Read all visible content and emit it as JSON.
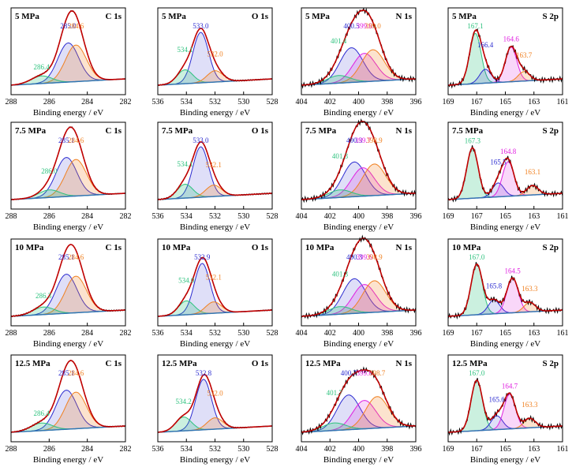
{
  "colors": {
    "frame": "#000000",
    "envelope": "#c00000",
    "raw": "#000000",
    "background": "#2e75b6",
    "blue": "#2b2bd0",
    "orange": "#f08020",
    "green": "#2ec27e",
    "magenta": "#e020e0"
  },
  "xlabel": "Binding energy / eV",
  "rows": [
    "5 MPa",
    "7.5 MPa",
    "10 MPa",
    "12.5 MPa"
  ],
  "chart_data": [
    {
      "type": "line",
      "pressure": "5 MPa",
      "element": "C 1s",
      "xlim": [
        288,
        282
      ],
      "xticks": [
        288,
        286,
        284,
        282
      ],
      "xlabel": "Binding energy / eV",
      "series": [
        {
          "peak": 285.0,
          "color": "blue",
          "label": "285.0"
        },
        {
          "peak": 284.6,
          "color": "orange",
          "label": "284.6"
        },
        {
          "peak": 286.4,
          "color": "green",
          "label": "286.4"
        }
      ]
    },
    {
      "type": "line",
      "pressure": "5 MPa",
      "element": "O 1s",
      "xlim": [
        536,
        528
      ],
      "xticks": [
        536,
        534,
        532,
        530,
        528
      ],
      "xlabel": "Binding energy / eV",
      "series": [
        {
          "peak": 533.0,
          "color": "blue",
          "label": "533.0"
        },
        {
          "peak": 534.1,
          "color": "green",
          "label": "534.1"
        },
        {
          "peak": 532.0,
          "color": "orange",
          "label": "532.0"
        }
      ]
    },
    {
      "type": "line",
      "pressure": "5 MPa",
      "element": "N 1s",
      "xlim": [
        404,
        396
      ],
      "xticks": [
        404,
        402,
        400,
        398,
        396
      ],
      "xlabel": "Binding energy / eV",
      "series": [
        {
          "peak": 400.5,
          "color": "blue",
          "label": "400.5"
        },
        {
          "peak": 399.6,
          "color": "magenta",
          "label": "399.6"
        },
        {
          "peak": 399.0,
          "color": "orange",
          "label": "399.0"
        },
        {
          "peak": 401.4,
          "color": "green",
          "label": "401.4"
        }
      ]
    },
    {
      "type": "line",
      "pressure": "5 MPa",
      "element": "S 2p",
      "xlim": [
        169,
        161
      ],
      "xticks": [
        169,
        167,
        165,
        163,
        161
      ],
      "xlabel": "Binding energy / eV",
      "series": [
        {
          "peak": 167.1,
          "color": "green",
          "label": "167.1"
        },
        {
          "peak": 166.4,
          "color": "blue",
          "label": "166.4"
        },
        {
          "peak": 164.6,
          "color": "magenta",
          "label": "164.6"
        },
        {
          "peak": 163.7,
          "color": "orange",
          "label": "163.7"
        }
      ]
    },
    {
      "type": "line",
      "pressure": "7.5 MPa",
      "element": "C 1s",
      "xlim": [
        288,
        282
      ],
      "xticks": [
        288,
        286,
        284,
        282
      ],
      "xlabel": "Binding energy / eV",
      "series": [
        {
          "peak": 285.1,
          "color": "blue",
          "label": "285.1"
        },
        {
          "peak": 284.6,
          "color": "orange",
          "label": "284.6"
        },
        {
          "peak": 286.0,
          "color": "green",
          "label": "286.0"
        }
      ]
    },
    {
      "type": "line",
      "pressure": "7.5 MPa",
      "element": "O 1s",
      "xlim": [
        536,
        528
      ],
      "xticks": [
        536,
        534,
        532,
        530,
        528
      ],
      "xlabel": "Binding energy / eV",
      "series": [
        {
          "peak": 533.0,
          "color": "blue",
          "label": "533.0"
        },
        {
          "peak": 534.1,
          "color": "green",
          "label": "534.1"
        },
        {
          "peak": 532.1,
          "color": "orange",
          "label": "532.1"
        }
      ]
    },
    {
      "type": "line",
      "pressure": "7.5 MPa",
      "element": "N 1s",
      "xlim": [
        404,
        396
      ],
      "xticks": [
        404,
        402,
        400,
        398,
        396
      ],
      "xlabel": "Binding energy / eV",
      "series": [
        {
          "peak": 400.3,
          "color": "blue",
          "label": "400.3"
        },
        {
          "peak": 399.7,
          "color": "magenta",
          "label": "399.7"
        },
        {
          "peak": 398.9,
          "color": "orange",
          "label": "398.9"
        },
        {
          "peak": 401.3,
          "color": "green",
          "label": "401.3"
        }
      ]
    },
    {
      "type": "line",
      "pressure": "7.5 MPa",
      "element": "S 2p",
      "xlim": [
        169,
        161
      ],
      "xticks": [
        169,
        167,
        165,
        163,
        161
      ],
      "xlabel": "Binding energy / eV",
      "series": [
        {
          "peak": 167.3,
          "color": "green",
          "label": "167.3"
        },
        {
          "peak": 165.5,
          "color": "blue",
          "label": "165.5"
        },
        {
          "peak": 164.8,
          "color": "magenta",
          "label": "164.8"
        },
        {
          "peak": 163.1,
          "color": "orange",
          "label": "163.1"
        }
      ]
    },
    {
      "type": "line",
      "pressure": "10 MPa",
      "element": "C 1s",
      "xlim": [
        288,
        282
      ],
      "xticks": [
        288,
        286,
        284,
        282
      ],
      "xlabel": "Binding energy / eV",
      "series": [
        {
          "peak": 285.1,
          "color": "blue",
          "label": "285.1"
        },
        {
          "peak": 284.6,
          "color": "orange",
          "label": "284.6"
        },
        {
          "peak": 286.3,
          "color": "green",
          "label": "286.3"
        }
      ]
    },
    {
      "type": "line",
      "pressure": "10 MPa",
      "element": "O 1s",
      "xlim": [
        536,
        528
      ],
      "xticks": [
        536,
        534,
        532,
        530,
        528
      ],
      "xlabel": "Binding energy / eV",
      "series": [
        {
          "peak": 532.9,
          "color": "blue",
          "label": "532.9"
        },
        {
          "peak": 534.0,
          "color": "green",
          "label": "534.0"
        },
        {
          "peak": 532.1,
          "color": "orange",
          "label": "532.1"
        }
      ]
    },
    {
      "type": "line",
      "pressure": "10 MPa",
      "element": "N 1s",
      "xlim": [
        404,
        396
      ],
      "xticks": [
        404,
        402,
        400,
        398,
        396
      ],
      "xlabel": "Binding energy / eV",
      "series": [
        {
          "peak": 400.3,
          "color": "blue",
          "label": "400.3"
        },
        {
          "peak": 399.6,
          "color": "magenta",
          "label": "399.6"
        },
        {
          "peak": 398.9,
          "color": "orange",
          "label": "398.9"
        },
        {
          "peak": 401.3,
          "color": "green",
          "label": "401.3"
        }
      ]
    },
    {
      "type": "line",
      "pressure": "10 MPa",
      "element": "S 2p",
      "xlim": [
        169,
        161
      ],
      "xticks": [
        169,
        167,
        165,
        163,
        161
      ],
      "xlabel": "Binding energy / eV",
      "series": [
        {
          "peak": 167.0,
          "color": "green",
          "label": "167.0"
        },
        {
          "peak": 165.8,
          "color": "blue",
          "label": "165.8"
        },
        {
          "peak": 164.5,
          "color": "magenta",
          "label": "164.5"
        },
        {
          "peak": 163.3,
          "color": "orange",
          "label": "163.3"
        }
      ]
    },
    {
      "type": "line",
      "pressure": "12.5 MPa",
      "element": "C 1s",
      "xlim": [
        288,
        282
      ],
      "xticks": [
        288,
        286,
        284,
        282
      ],
      "xlabel": "Binding energy / eV",
      "series": [
        {
          "peak": 285.1,
          "color": "blue",
          "label": "285.1"
        },
        {
          "peak": 284.6,
          "color": "orange",
          "label": "284.6"
        },
        {
          "peak": 286.4,
          "color": "green",
          "label": "286.4"
        }
      ]
    },
    {
      "type": "line",
      "pressure": "12.5 MPa",
      "element": "O 1s",
      "xlim": [
        536,
        528
      ],
      "xticks": [
        536,
        534,
        532,
        530,
        528
      ],
      "xlabel": "Binding energy / eV",
      "series": [
        {
          "peak": 532.8,
          "color": "blue",
          "label": "532.8"
        },
        {
          "peak": 534.2,
          "color": "green",
          "label": "534.2"
        },
        {
          "peak": 532.0,
          "color": "orange",
          "label": "532.0"
        }
      ]
    },
    {
      "type": "line",
      "pressure": "12.5 MPa",
      "element": "N 1s",
      "xlim": [
        404,
        396
      ],
      "xticks": [
        404,
        402,
        400,
        398,
        396
      ],
      "xlabel": "Binding energy / eV",
      "series": [
        {
          "peak": 400.7,
          "color": "blue",
          "label": "400.7"
        },
        {
          "peak": 399.6,
          "color": "magenta",
          "label": "399.6"
        },
        {
          "peak": 398.7,
          "color": "orange",
          "label": "398.7"
        },
        {
          "peak": 401.7,
          "color": "green",
          "label": "401.7"
        }
      ]
    },
    {
      "type": "line",
      "pressure": "12.5 MPa",
      "element": "S 2p",
      "xlim": [
        169,
        161
      ],
      "xticks": [
        169,
        167,
        165,
        163,
        161
      ],
      "xlabel": "Binding energy / eV",
      "series": [
        {
          "peak": 167.0,
          "color": "green",
          "label": "167.0"
        },
        {
          "peak": 165.6,
          "color": "blue",
          "label": "165.6"
        },
        {
          "peak": 164.7,
          "color": "magenta",
          "label": "164.7"
        },
        {
          "peak": 163.3,
          "color": "orange",
          "label": "163.3"
        }
      ]
    }
  ]
}
